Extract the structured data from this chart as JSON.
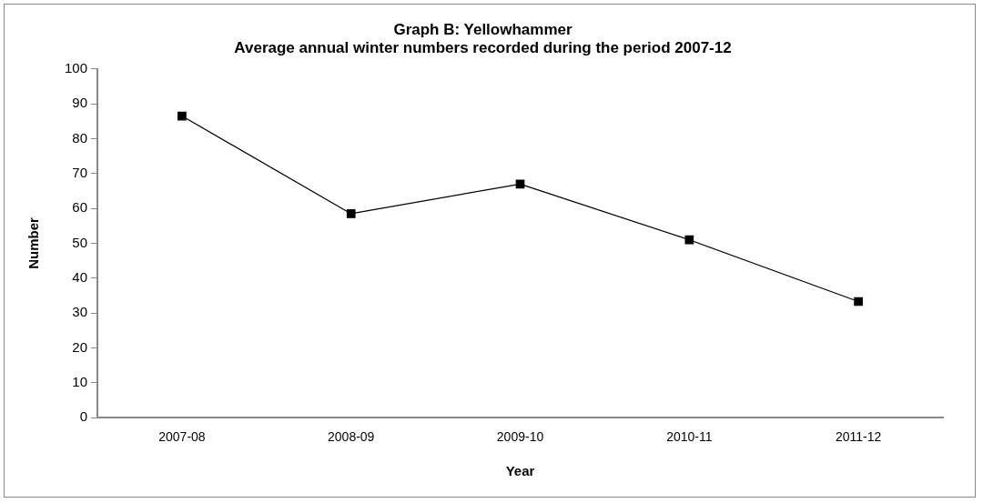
{
  "chart_data": {
    "type": "line",
    "title": "Graph B: Yellowhammer",
    "subtitle": "Average annual winter numbers recorded during the period 2007-12",
    "xlabel": "Year",
    "ylabel": "Number",
    "categories": [
      "2007-08",
      "2008-09",
      "2009-10",
      "2010-11",
      "2011-12"
    ],
    "series": [
      {
        "color": "#000000",
        "values": [
          86.5,
          58.5,
          67,
          51,
          33.3
        ]
      }
    ],
    "ylim": [
      0,
      100
    ],
    "yticks": [
      0,
      10,
      20,
      30,
      40,
      50,
      60,
      70,
      80,
      90,
      100
    ],
    "marker": "square",
    "line_style": "solid"
  }
}
